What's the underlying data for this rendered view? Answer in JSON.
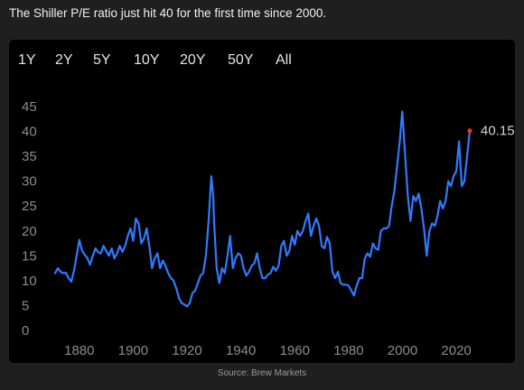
{
  "headline": "The Shiller P/E ratio just hit 40 for the first time since 2000.",
  "ranges": [
    "1Y",
    "2Y",
    "5Y",
    "10Y",
    "20Y",
    "50Y",
    "All"
  ],
  "source": "Source: Brew Markets",
  "colors": {
    "line": "#2f7bff",
    "lastPoint": "#ff2a2a",
    "panel": "#000000",
    "page": "#1f1f1f"
  },
  "chart_data": {
    "type": "line",
    "title": "",
    "xlabel": "",
    "ylabel": "",
    "xlim": [
      1871,
      2025
    ],
    "ylim": [
      0,
      45
    ],
    "xticks": [
      1880,
      1900,
      1920,
      1940,
      1960,
      1980,
      2000,
      2020
    ],
    "yticks": [
      0,
      5,
      10,
      15,
      20,
      25,
      30,
      35,
      40,
      45
    ],
    "grid": false,
    "last_value_label": "40.15",
    "series": [
      {
        "x": [
          1871,
          1872,
          1873,
          1874,
          1875,
          1876,
          1877,
          1878,
          1879,
          1880,
          1881,
          1882,
          1883,
          1884,
          1885,
          1886,
          1887,
          1888,
          1889,
          1890,
          1891,
          1892,
          1893,
          1894,
          1895,
          1896,
          1897,
          1898,
          1899,
          1900,
          1901,
          1902,
          1903,
          1904,
          1905,
          1906,
          1907,
          1908,
          1909,
          1910,
          1911,
          1912,
          1913,
          1914,
          1915,
          1916,
          1917,
          1918,
          1919,
          1920,
          1921,
          1922,
          1923,
          1924,
          1925,
          1926,
          1927,
          1928,
          1929,
          1929.7,
          1930,
          1931,
          1932,
          1933,
          1934,
          1935,
          1936,
          1937,
          1938,
          1939,
          1940,
          1941,
          1942,
          1943,
          1944,
          1945,
          1946,
          1947,
          1948,
          1949,
          1950,
          1951,
          1952,
          1953,
          1954,
          1955,
          1956,
          1957,
          1958,
          1959,
          1960,
          1961,
          1962,
          1963,
          1964,
          1965,
          1966,
          1967,
          1968,
          1969,
          1970,
          1971,
          1972,
          1973,
          1974,
          1975,
          1976,
          1977,
          1978,
          1979,
          1980,
          1981,
          1982,
          1983,
          1984,
          1985,
          1986,
          1987,
          1988,
          1989,
          1990,
          1991,
          1992,
          1993,
          1994,
          1995,
          1996,
          1997,
          1998,
          1999,
          1999.9,
          2000,
          2001,
          2002,
          2003,
          2004,
          2005,
          2006,
          2007,
          2008,
          2009,
          2010,
          2011,
          2012,
          2013,
          2014,
          2015,
          2016,
          2017,
          2018,
          2019,
          2020,
          2021,
          2022,
          2023,
          2024,
          2025
        ],
        "values": [
          11.5,
          12.5,
          11.8,
          11.5,
          11.6,
          10.5,
          9.8,
          12,
          15,
          18.2,
          16,
          15.2,
          14.5,
          13.2,
          15,
          16.5,
          15.7,
          15.5,
          17,
          16,
          15,
          16.5,
          14.5,
          15.5,
          17,
          15.8,
          17,
          19,
          20.5,
          18,
          22.5,
          21.5,
          17.5,
          18.5,
          20.5,
          17,
          12.5,
          14.5,
          15.5,
          12.5,
          14,
          13,
          11.5,
          10.5,
          10,
          8.5,
          6.5,
          5.5,
          5.2,
          4.8,
          5.5,
          7.5,
          8.0,
          9.5,
          11,
          11.5,
          15,
          22,
          31,
          27,
          22,
          12.5,
          9.5,
          12.5,
          11.5,
          15,
          19,
          12.5,
          14.5,
          15.5,
          15,
          12.5,
          11,
          11.8,
          13,
          13.5,
          15.5,
          12.5,
          10.5,
          10.5,
          11.2,
          11.5,
          12.8,
          12,
          13,
          17,
          18,
          15,
          16,
          19,
          17.2,
          20,
          19,
          20,
          22,
          23.5,
          19,
          21,
          22.5,
          21,
          17,
          16.5,
          18.8,
          17.5,
          11.8,
          10.5,
          11.8,
          9.5,
          9.2,
          9.2,
          9.0,
          8.0,
          7.0,
          9,
          10.5,
          10.5,
          14.5,
          15.5,
          14.8,
          17.5,
          16.5,
          16.2,
          20,
          20.5,
          20.5,
          21,
          25,
          28,
          33,
          38,
          44,
          43.5,
          35,
          27,
          22,
          27,
          26,
          27.5,
          24.5,
          20.5,
          15,
          20,
          21.5,
          21,
          23,
          26,
          24.5,
          26,
          30,
          29,
          31,
          32,
          38,
          29,
          30,
          35,
          40.15
        ]
      }
    ]
  }
}
